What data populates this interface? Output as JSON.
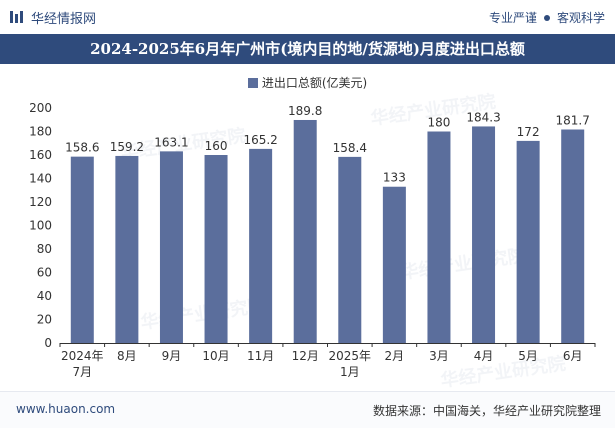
{
  "header": {
    "brand_name": "华经情报网",
    "tagline_left": "专业严谨",
    "tagline_right": "客观科学"
  },
  "title": "2024-2025年6月年广州市(境内目的地/货源地)月度进出口总额",
  "footer": {
    "website": "www.huaon.com",
    "source": "数据来源：中国海关，华经产业研究院整理"
  },
  "watermark": "华经产业研究院",
  "colors": {
    "brand": "#2f4b7c",
    "bar": "#5b6e9c"
  },
  "chart_data": {
    "type": "bar",
    "title": "2024-2025年6月年广州市(境内目的地/货源地)月度进出口总额",
    "categories": [
      "2024年7月",
      "8月",
      "9月",
      "10月",
      "11月",
      "12月",
      "2025年1月",
      "2月",
      "3月",
      "4月",
      "5月",
      "6月"
    ],
    "series": [
      {
        "name": "进出口总额(亿美元)",
        "values": [
          158.6,
          159.2,
          163.1,
          160,
          165.2,
          189.8,
          158.4,
          133,
          180,
          184.3,
          172,
          181.7
        ]
      }
    ],
    "value_labels": [
      "158.6",
      "159.2",
      "163.1",
      "160",
      "165.2",
      "189.8",
      "158.4",
      "133",
      "180",
      "184.3",
      "172",
      "181.7"
    ],
    "ylim": [
      0,
      200
    ],
    "yticks": [
      0,
      20,
      40,
      60,
      80,
      100,
      120,
      140,
      160,
      180,
      200
    ],
    "xlabel": "",
    "ylabel": "",
    "legend": "top-center",
    "grid": false
  }
}
